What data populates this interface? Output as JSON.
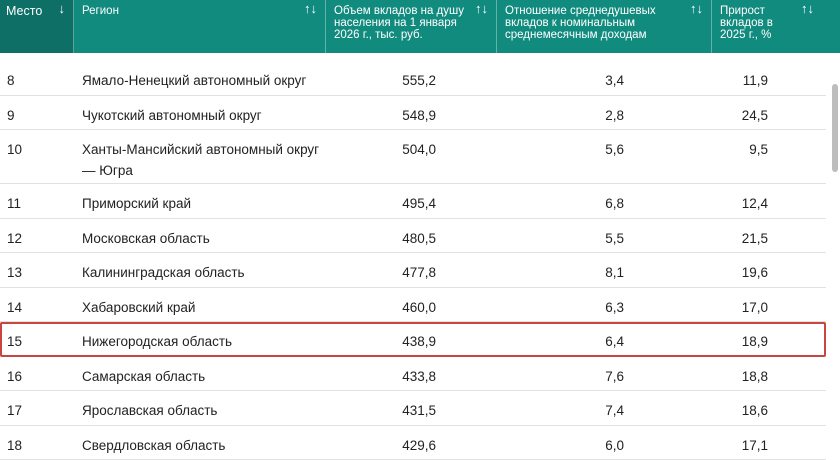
{
  "header": {
    "col1": "Место",
    "col1_sort": "↓",
    "col2": "Регион",
    "col3": "Объем вкладов на душу населения на 1 января 2026 г., тыс. руб.",
    "col4": "Отношение среднедушевых вкладов к номинальным среднемесячным доходам",
    "col5": "Прирост вкладов в 2025 г., %",
    "sort_icon": "↑↓"
  },
  "rows": [
    {
      "rank": "8",
      "region": "Ямало-Ненецкий автономный округ",
      "deposits": "555,2",
      "ratio": "3,4",
      "growth": "11,9"
    },
    {
      "rank": "9",
      "region": "Чукотский автономный округ",
      "deposits": "548,9",
      "ratio": "2,8",
      "growth": "24,5"
    },
    {
      "rank": "10",
      "region": "Ханты-Мансийский автономный округ — Югра",
      "deposits": "504,0",
      "ratio": "5,6",
      "growth": "9,5"
    },
    {
      "rank": "11",
      "region": "Приморский край",
      "deposits": "495,4",
      "ratio": "6,8",
      "growth": "12,4"
    },
    {
      "rank": "12",
      "region": "Московская область",
      "deposits": "480,5",
      "ratio": "5,5",
      "growth": "21,5"
    },
    {
      "rank": "13",
      "region": "Калининградская область",
      "deposits": "477,8",
      "ratio": "8,1",
      "growth": "19,6"
    },
    {
      "rank": "14",
      "region": "Хабаровский край",
      "deposits": "460,0",
      "ratio": "6,3",
      "growth": "17,0"
    },
    {
      "rank": "15",
      "region": "Нижегородская область",
      "deposits": "438,9",
      "ratio": "6,4",
      "growth": "18,9"
    },
    {
      "rank": "16",
      "region": "Самарская область",
      "deposits": "433,8",
      "ratio": "7,6",
      "growth": "18,8"
    },
    {
      "rank": "17",
      "region": "Ярославская область",
      "deposits": "431,5",
      "ratio": "7,4",
      "growth": "18,6"
    },
    {
      "rank": "18",
      "region": "Свердловская область",
      "deposits": "429,6",
      "ratio": "6,0",
      "growth": "17,1"
    }
  ],
  "highlight_color": "#c8463f",
  "header_color": "#128b7f"
}
